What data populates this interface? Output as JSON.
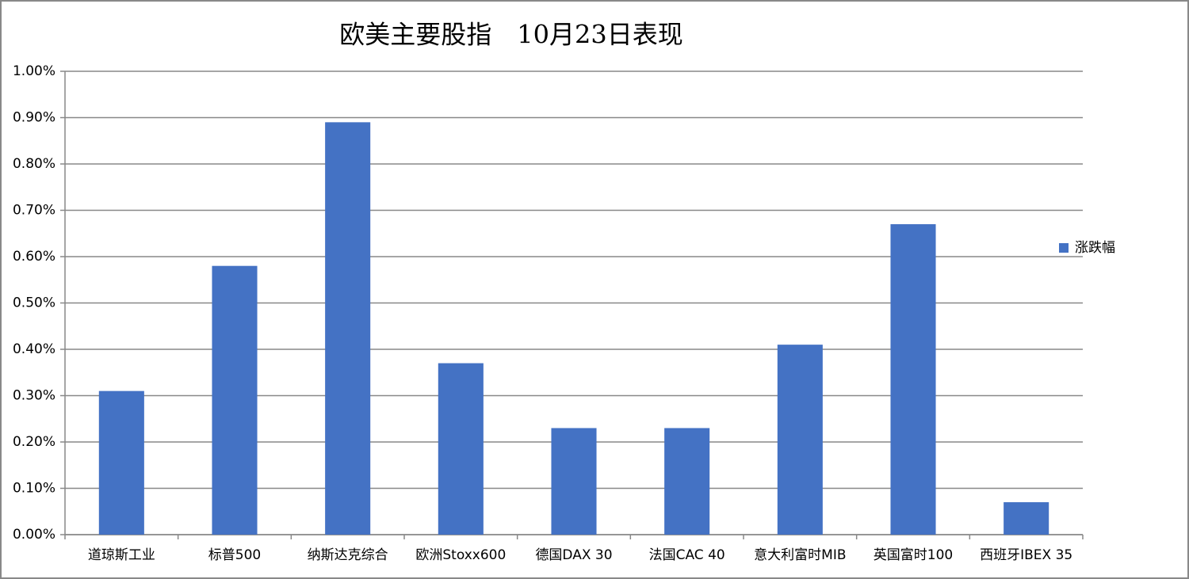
{
  "chart_data": {
    "type": "bar",
    "title": "欧美主要股指　10月23日表现",
    "categories": [
      "道琼斯工业",
      "标普500",
      "纳斯达克综合",
      "欧洲Stoxx600",
      "德国DAX 30",
      "法国CAC 40",
      "意大利富时MIB",
      "英国富时100",
      "西班牙IBEX 35"
    ],
    "series": [
      {
        "name": "涨跌幅",
        "color": "#4472c4",
        "values": [
          0.31,
          0.58,
          0.89,
          0.37,
          0.23,
          0.23,
          0.41,
          0.67,
          0.07
        ]
      }
    ],
    "ylim": [
      0,
      1
    ],
    "yticks": [
      {
        "value": 0,
        "label": "0.00%"
      },
      {
        "value": 0.1,
        "label": "0.10%"
      },
      {
        "value": 0.2,
        "label": "0.20%"
      },
      {
        "value": 0.3,
        "label": "0.30%"
      },
      {
        "value": 0.4,
        "label": "0.40%"
      },
      {
        "value": 0.5,
        "label": "0.50%"
      },
      {
        "value": 0.6,
        "label": "0.60%"
      },
      {
        "value": 0.7,
        "label": "0.70%"
      },
      {
        "value": 0.8,
        "label": "0.80%"
      },
      {
        "value": 0.9,
        "label": "0.90%"
      },
      {
        "value": 1,
        "label": "1.00%"
      }
    ],
    "grid": true,
    "legend": "right"
  }
}
